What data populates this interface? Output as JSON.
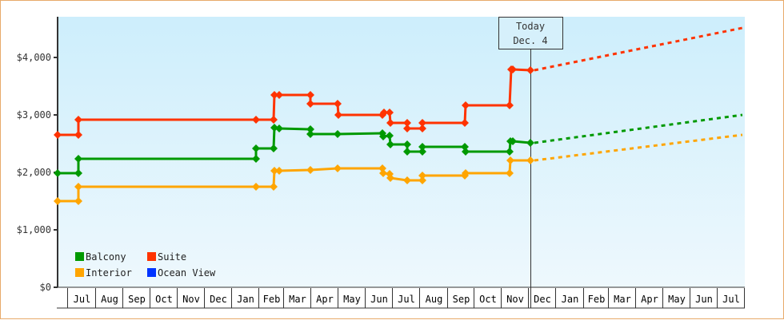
{
  "chart_data": {
    "type": "line",
    "title": "",
    "xlabel": "",
    "ylabel": "",
    "ylim": [
      0,
      4600
    ],
    "y_ticks": [
      {
        "value": 0,
        "label": "$0"
      },
      {
        "value": 1000,
        "label": "$1,000"
      },
      {
        "value": 2000,
        "label": "$2,000"
      },
      {
        "value": 3000,
        "label": "$3,000"
      },
      {
        "value": 4000,
        "label": "$4,000"
      }
    ],
    "x_months": [
      "Jul",
      "Aug",
      "Sep",
      "Oct",
      "Nov",
      "Dec",
      "Jan",
      "Feb",
      "Mar",
      "Apr",
      "May",
      "Jun",
      "Jul",
      "Aug",
      "Sep",
      "Oct",
      "Nov",
      "Dec",
      "Jan",
      "Feb",
      "Mar",
      "Apr",
      "May",
      "Jun",
      "Jul"
    ],
    "x_month_bounds": [
      83,
      118,
      152,
      186,
      220,
      254,
      288,
      322,
      353,
      387,
      421,
      455,
      489,
      523,
      558,
      591,
      625,
      659,
      693,
      728,
      759,
      793,
      827,
      861,
      895,
      929
    ],
    "grid": false,
    "legend_position": "lower-left",
    "today": {
      "line1": "Today",
      "line2": "Dec. 4",
      "x": 662
    },
    "series": [
      {
        "name": "Balcony",
        "color": "#009900",
        "points": [
          [
            71,
            1986
          ],
          [
            97,
            1986
          ],
          [
            97,
            2236
          ],
          [
            319,
            2236
          ],
          [
            319,
            2417
          ],
          [
            341,
            2417
          ],
          [
            342,
            2778
          ],
          [
            348,
            2764
          ],
          [
            387,
            2750
          ],
          [
            387,
            2667
          ],
          [
            421,
            2667
          ],
          [
            477,
            2681
          ],
          [
            478,
            2625
          ],
          [
            486,
            2639
          ],
          [
            487,
            2486
          ],
          [
            508,
            2486
          ],
          [
            508,
            2361
          ],
          [
            527,
            2361
          ],
          [
            527,
            2444
          ],
          [
            580,
            2444
          ],
          [
            581,
            2361
          ],
          [
            636,
            2361
          ],
          [
            637,
            2542
          ],
          [
            640,
            2542
          ],
          [
            662,
            2514
          ]
        ],
        "projection": [
          [
            662,
            2514
          ],
          [
            927,
            3000
          ]
        ]
      },
      {
        "name": "Suite",
        "color": "#ff3300",
        "points": [
          [
            71,
            2653
          ],
          [
            97,
            2653
          ],
          [
            97,
            2917
          ],
          [
            319,
            2917
          ],
          [
            341,
            2917
          ],
          [
            342,
            3347
          ],
          [
            348,
            3347
          ],
          [
            387,
            3347
          ],
          [
            387,
            3194
          ],
          [
            421,
            3194
          ],
          [
            422,
            3000
          ],
          [
            477,
            3000
          ],
          [
            479,
            3042
          ],
          [
            486,
            3042
          ],
          [
            487,
            2861
          ],
          [
            508,
            2861
          ],
          [
            508,
            2764
          ],
          [
            527,
            2764
          ],
          [
            527,
            2861
          ],
          [
            580,
            2861
          ],
          [
            581,
            3167
          ],
          [
            636,
            3167
          ],
          [
            638,
            3792
          ],
          [
            640,
            3792
          ],
          [
            662,
            3778
          ]
        ],
        "projection": [
          [
            662,
            3778
          ],
          [
            927,
            4514
          ]
        ]
      },
      {
        "name": "Interior",
        "color": "#ffa500",
        "points": [
          [
            71,
            1500
          ],
          [
            97,
            1500
          ],
          [
            97,
            1750
          ],
          [
            319,
            1750
          ],
          [
            341,
            1750
          ],
          [
            342,
            2028
          ],
          [
            348,
            2028
          ],
          [
            387,
            2042
          ],
          [
            421,
            2069
          ],
          [
            477,
            2069
          ],
          [
            478,
            1986
          ],
          [
            486,
            1972
          ],
          [
            487,
            1903
          ],
          [
            508,
            1861
          ],
          [
            527,
            1861
          ],
          [
            527,
            1944
          ],
          [
            580,
            1944
          ],
          [
            581,
            1986
          ],
          [
            636,
            1986
          ],
          [
            637,
            2208
          ],
          [
            662,
            2208
          ]
        ],
        "projection": [
          [
            662,
            2208
          ],
          [
            927,
            2653
          ]
        ]
      },
      {
        "name": "Ocean View",
        "color": "#0033ff",
        "points": [],
        "projection": []
      }
    ]
  },
  "legend": {
    "items": [
      {
        "label": "Balcony",
        "color": "#009900"
      },
      {
        "label": "Suite",
        "color": "#ff3300"
      },
      {
        "label": "Interior",
        "color": "#ffa500"
      },
      {
        "label": "Ocean View",
        "color": "#0033ff"
      }
    ]
  },
  "today_marker": {
    "line1": "Today",
    "line2": "Dec. 4"
  }
}
